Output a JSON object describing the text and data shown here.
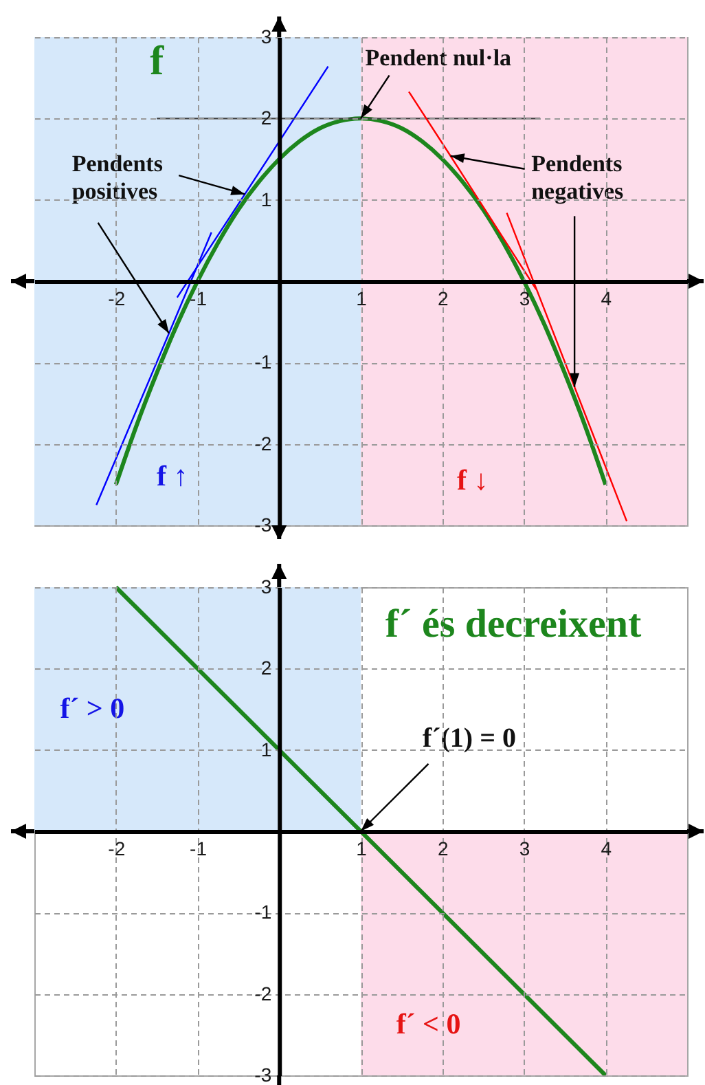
{
  "chart_data": [
    {
      "type": "line",
      "xlim": [
        -3,
        5
      ],
      "ylim": [
        -3,
        3
      ],
      "xticks": [
        -2,
        -1,
        1,
        2,
        3,
        4
      ],
      "yticks": [
        -3,
        -2,
        -1,
        1,
        2,
        3
      ],
      "grid": true,
      "bands": [
        {
          "axis": "x",
          "from": -3,
          "to": 1,
          "label": "f ↑",
          "color": "#d6e8fa"
        },
        {
          "axis": "x",
          "from": 1,
          "to": 5,
          "label": "f ↓",
          "color": "#fddcea"
        }
      ],
      "series": [
        {
          "name": "f",
          "color": "#1d861d",
          "x": [
            -2,
            -1.75,
            -1.5,
            -1.25,
            -1,
            -0.75,
            -0.5,
            -0.25,
            0,
            0.25,
            0.5,
            0.75,
            1,
            1.25,
            1.5,
            1.75,
            2,
            2.25,
            2.5,
            2.75,
            3,
            3.25,
            3.5,
            3.75,
            4
          ],
          "values": [
            -2.5,
            -1.78,
            -1.13,
            -0.53,
            0,
            0.47,
            0.88,
            1.22,
            1.5,
            1.72,
            1.88,
            1.97,
            2,
            1.97,
            1.88,
            1.72,
            1.5,
            1.22,
            0.88,
            0.47,
            0,
            -0.53,
            -1.13,
            -1.78,
            -2.5
          ]
        },
        {
          "color": "#0000ff",
          "x": [
            -1.25,
            -0.42,
            0.6
          ],
          "values": [
            -0.2,
            1.07,
            2.64
          ]
        },
        {
          "color": "#0000ff",
          "x": [
            -2.24,
            -1.35,
            -0.83
          ],
          "values": [
            -2.75,
            -0.64,
            0.6
          ]
        },
        {
          "color": "#404040",
          "x": [
            -1.5,
            1,
            3.2
          ],
          "values": [
            2,
            2,
            2
          ]
        },
        {
          "color": "#ff0000",
          "x": [
            1.59,
            2.1,
            3.15
          ],
          "values": [
            2.33,
            1.54,
            -0.1
          ]
        },
        {
          "color": "#ff0000",
          "x": [
            2.79,
            3.62,
            4.26
          ],
          "values": [
            0.84,
            -1.3,
            -2.95
          ]
        }
      ],
      "annotations": [
        {
          "text": "Pendents positives",
          "x": -0.42,
          "y": 1.07
        },
        {
          "text": "Pendent nul·la",
          "x": 1,
          "y": 2
        },
        {
          "text": "Pendents negatives",
          "x": 2.1,
          "y": 1.54
        }
      ]
    },
    {
      "type": "line",
      "xlim": [
        -3,
        5
      ],
      "ylim": [
        -3,
        3
      ],
      "xticks": [
        -2,
        -1,
        1,
        2,
        3,
        4
      ],
      "yticks": [
        -3,
        -2,
        -1,
        1,
        2,
        3
      ],
      "grid": true,
      "series": [
        {
          "type": "area",
          "name": "f´ > 0",
          "color": "#d6e8fa",
          "x": [
            -3,
            1
          ],
          "values": [
            3,
            3
          ]
        },
        {
          "type": "area",
          "name": "f´ < 0",
          "color": "#fddcea",
          "x": [
            1,
            5
          ],
          "values": [
            -3,
            -3
          ]
        },
        {
          "name": "f´ és decreixent",
          "color": "#1d861d",
          "x": [
            -2,
            4
          ],
          "values": [
            3,
            -3
          ]
        }
      ],
      "annotations": [
        {
          "text": "f´(1) = 0",
          "x": 1,
          "y": 0
        }
      ]
    }
  ]
}
